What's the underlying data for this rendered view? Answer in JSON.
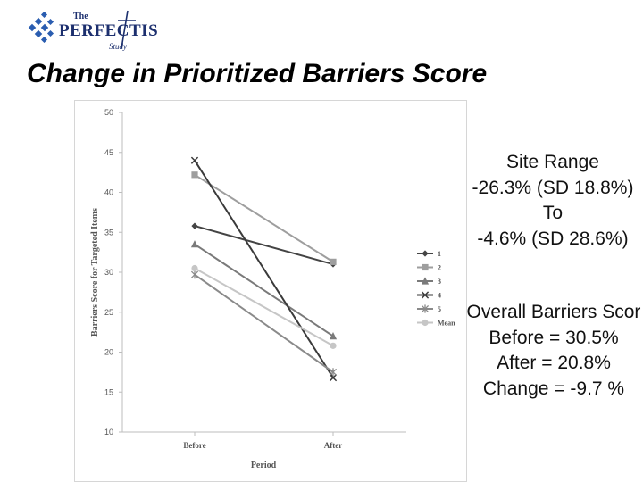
{
  "logo": {
    "the": "The",
    "main": "PERFECTIS",
    "study": "Study"
  },
  "slide_title": "Change in Prioritized Barriers Score",
  "site_range": {
    "heading": "Site Range",
    "line1": "-26.3% (SD 18.8%)",
    "line2": "To",
    "line3": "-4.6% (SD 28.6%)"
  },
  "overall": {
    "heading": "Overall Barriers Scor",
    "before": "Before = 30.5%",
    "after": "After = 20.8%",
    "change": "Change = -9.7 %"
  },
  "colors": {
    "title": "#000000",
    "logo_blue": "#1c2f6e",
    "mean_series": "#c6c6c6"
  },
  "chart_data": {
    "type": "line",
    "xlabel": "Period",
    "ylabel": "Barriers Score for Targeted Items",
    "categories": [
      "Before",
      "After"
    ],
    "ylim": [
      10,
      50
    ],
    "yticks": [
      10,
      15,
      20,
      25,
      30,
      35,
      40,
      45,
      50
    ],
    "grid": false,
    "legend_position": "right",
    "series": [
      {
        "name": "1",
        "values": [
          35.8,
          31.0
        ],
        "color": "#444444",
        "marker": "diamond"
      },
      {
        "name": "2",
        "values": [
          42.2,
          31.3
        ],
        "color": "#9e9e9e",
        "marker": "square"
      },
      {
        "name": "3",
        "values": [
          33.5,
          22.0
        ],
        "color": "#7a7a7a",
        "marker": "triangle"
      },
      {
        "name": "4",
        "values": [
          44.0,
          16.8
        ],
        "color": "#3a3a3a",
        "marker": "x"
      },
      {
        "name": "5",
        "values": [
          29.7,
          17.5
        ],
        "color": "#8a8a8a",
        "marker": "star"
      },
      {
        "name": "Mean",
        "values": [
          30.5,
          20.8
        ],
        "color": "#c6c6c6",
        "marker": "circle"
      }
    ]
  }
}
